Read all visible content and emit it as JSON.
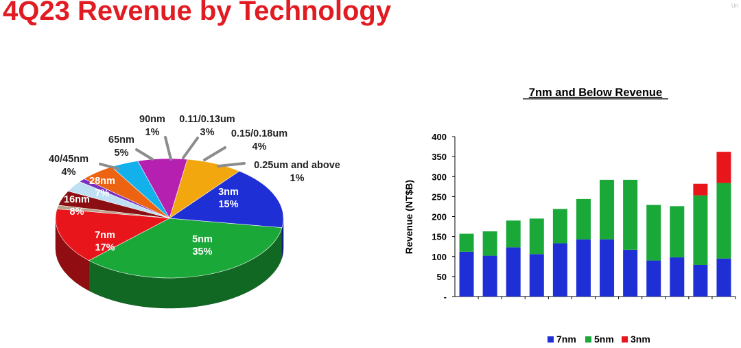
{
  "page": {
    "title": "4Q23 Revenue by Technology",
    "corner_mark": "Un"
  },
  "colors": {
    "title": "#e11b22",
    "7nm": "#1f2fd6",
    "5nm": "#1aa838",
    "3nm": "#e8151b"
  },
  "chart_data": [
    {
      "type": "pie",
      "style": "3d-pie",
      "slices": [
        {
          "label": "5nm",
          "pct": "35%",
          "value": 35,
          "color": "#1aa838",
          "label_inside": true
        },
        {
          "label": "7nm",
          "pct": "17%",
          "value": 17,
          "color": "#1f2fd6",
          "label_inside": true
        },
        {
          "label": "16nm",
          "pct": "8%",
          "value": 8,
          "color": "#f3a70e",
          "label_inside": true
        },
        {
          "label": "28nm",
          "pct": "7%",
          "value": 7,
          "color": "#b620b0",
          "label_inside": true
        },
        {
          "label": "40/45nm",
          "pct": "4%",
          "value": 4,
          "color": "#12b1ec",
          "label_inside": false
        },
        {
          "label": "65nm",
          "pct": "5%",
          "value": 5,
          "color": "#ec6312",
          "label_inside": false
        },
        {
          "label": "90nm",
          "pct": "1%",
          "value": 1,
          "color": "#7a2fc0",
          "label_inside": false
        },
        {
          "label": "0.11/0.13um",
          "pct": "3%",
          "value": 3,
          "color": "#bfe0f2",
          "label_inside": false
        },
        {
          "label": "0.15/0.18um",
          "pct": "4%",
          "value": 4,
          "color": "#8b0f12",
          "label_inside": false
        },
        {
          "label": "0.25um and above",
          "pct": "1%",
          "value": 1,
          "color": "#b8a08a",
          "label_inside": false
        },
        {
          "label": "3nm",
          "pct": "15%",
          "value": 15,
          "color": "#e8151b",
          "label_inside": true
        }
      ]
    },
    {
      "type": "bar",
      "stacked": true,
      "title": "7nm and Below Revenue",
      "ylabel": "Revenue (NT$B)",
      "xlabel": "",
      "ylim": [
        0,
        400
      ],
      "yticks": [
        "-",
        "50",
        "100",
        "150",
        "200",
        "250",
        "300",
        "350",
        "400"
      ],
      "grid": false,
      "legend_position": "bottom",
      "categories": [
        "",
        "",
        "",
        "",
        "",
        "",
        "",
        "",
        "",
        "",
        "",
        ""
      ],
      "series": [
        {
          "name": "7nm",
          "color": "#1f2fd6",
          "values": [
            112,
            102,
            123,
            106,
            133,
            143,
            143,
            117,
            90,
            98,
            79,
            95
          ]
        },
        {
          "name": "5nm",
          "color": "#1aa838",
          "values": [
            45,
            61,
            67,
            89,
            86,
            101,
            149,
            175,
            139,
            128,
            174,
            189
          ]
        },
        {
          "name": "3nm",
          "color": "#e8151b",
          "values": [
            0,
            0,
            0,
            0,
            0,
            0,
            0,
            0,
            0,
            0,
            29,
            78
          ]
        }
      ]
    }
  ]
}
